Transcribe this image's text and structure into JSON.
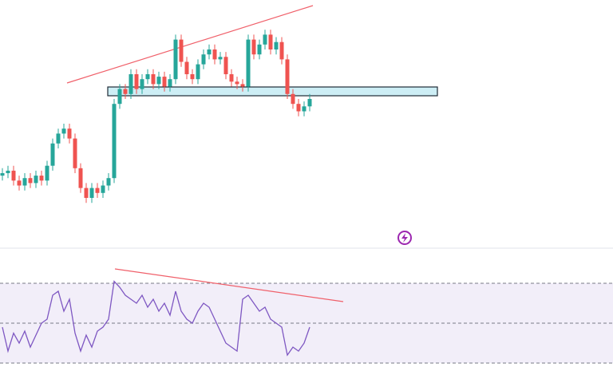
{
  "chart_data": [
    {
      "type": "candlestick",
      "up_color": "#26a69a",
      "down_color": "#ef5350",
      "ylim": [
        0,
        100
      ],
      "open": [
        29,
        30,
        31,
        27,
        25,
        28,
        26,
        29,
        27,
        33,
        42,
        46,
        48,
        44,
        32,
        24,
        20,
        24,
        22,
        25,
        28,
        58,
        64,
        62,
        70,
        64,
        68,
        70,
        66,
        69,
        65,
        68,
        84,
        75,
        70,
        68,
        74,
        78,
        80,
        76,
        77,
        70,
        67,
        66,
        65,
        84,
        78,
        82,
        86,
        80,
        83,
        76,
        62,
        58,
        55,
        57
      ],
      "high": [
        32,
        33,
        33,
        29,
        30,
        30,
        31,
        31,
        35,
        44,
        48,
        50,
        50,
        46,
        34,
        26,
        26,
        26,
        27,
        30,
        60,
        66,
        66,
        72,
        72,
        70,
        72,
        72,
        71,
        71,
        70,
        86,
        86,
        77,
        72,
        76,
        80,
        82,
        82,
        79,
        79,
        72,
        69,
        68,
        86,
        86,
        84,
        88,
        88,
        85,
        85,
        78,
        64,
        60,
        59,
        62
      ],
      "low": [
        27,
        28,
        25,
        23,
        23,
        24,
        24,
        25,
        25,
        31,
        40,
        44,
        42,
        30,
        22,
        18,
        18,
        20,
        20,
        23,
        26,
        56,
        60,
        60,
        62,
        62,
        66,
        64,
        64,
        63,
        63,
        66,
        73,
        68,
        66,
        66,
        72,
        76,
        74,
        74,
        68,
        65,
        64,
        63,
        63,
        76,
        76,
        80,
        78,
        78,
        74,
        60,
        56,
        53,
        53,
        55
      ],
      "close": [
        30,
        31,
        27,
        25,
        28,
        26,
        29,
        27,
        33,
        42,
        46,
        48,
        44,
        32,
        24,
        20,
        24,
        22,
        25,
        28,
        58,
        64,
        62,
        70,
        64,
        68,
        70,
        66,
        69,
        65,
        68,
        84,
        75,
        70,
        68,
        74,
        78,
        80,
        76,
        77,
        70,
        67,
        66,
        65,
        84,
        78,
        82,
        86,
        80,
        83,
        76,
        62,
        58,
        55,
        57,
        60
      ]
    },
    {
      "type": "line",
      "color": "#7e57c2",
      "ylim": [
        20,
        80
      ],
      "levels": [
        30,
        50,
        70
      ],
      "values": [
        48,
        36,
        45,
        40,
        46,
        38,
        44,
        50,
        52,
        64,
        66,
        56,
        62,
        45,
        36,
        44,
        38,
        46,
        48,
        52,
        71,
        68,
        64,
        62,
        60,
        64,
        58,
        62,
        56,
        60,
        54,
        66,
        56,
        52,
        50,
        56,
        60,
        58,
        52,
        46,
        40,
        38,
        36,
        62,
        64,
        60,
        56,
        58,
        52,
        50,
        48,
        34,
        38,
        36,
        40,
        48
      ]
    }
  ]
}
